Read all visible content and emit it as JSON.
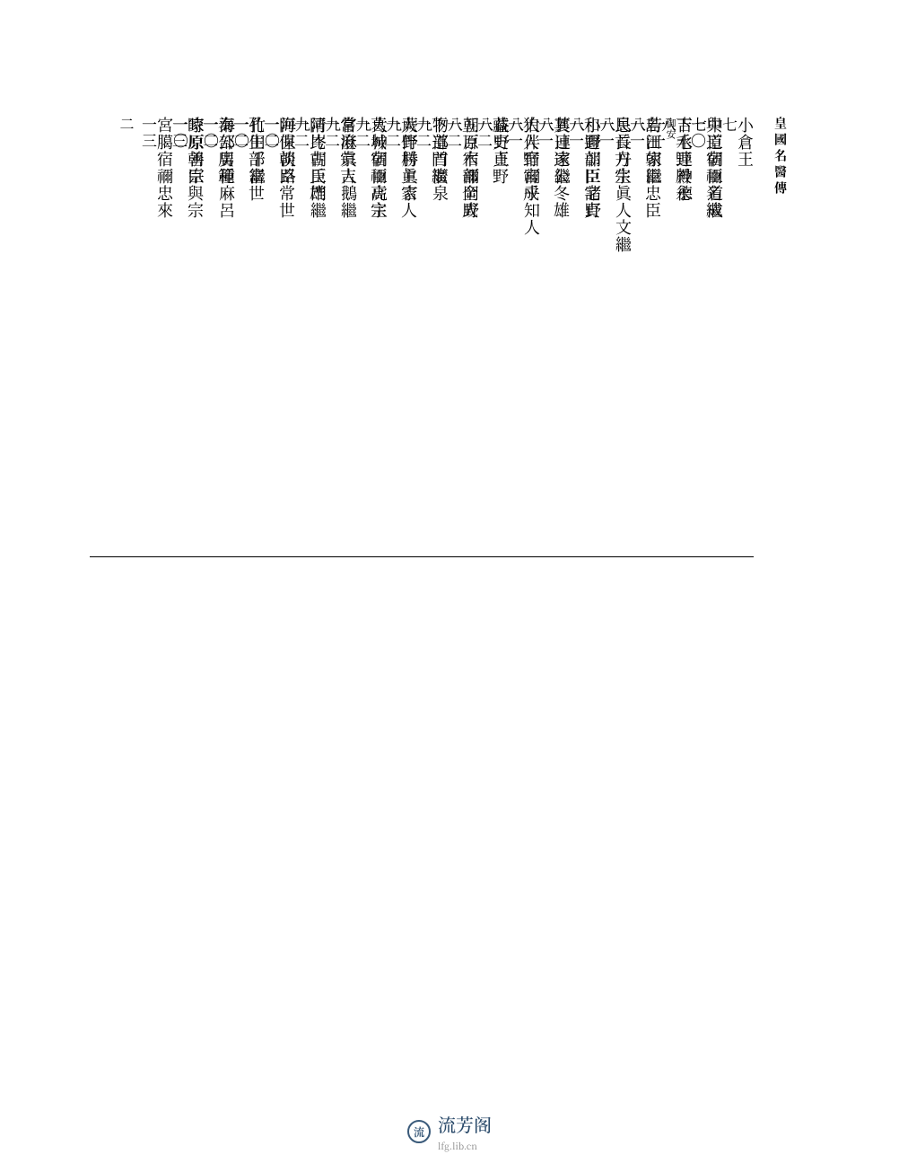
{
  "header": "皇國名醫傳",
  "page_number_right": "二",
  "columns": [
    {
      "top": {
        "name": "小倉王",
        "page": "七"
      },
      "bottom": {
        "name": "與道宿禰名繼",
        "page": "一〇"
      }
    },
    {
      "top": {
        "name": "中臣朝臣道成",
        "page": "七"
      },
      "bottom": {
        "name": "下毛野殿永",
        "sub": "御安",
        "page": "一一"
      }
    },
    {
      "top": {
        "name": "吉水連神德",
        "page": "八"
      },
      "bottom": {
        "name": "島田朝臣忠臣",
        "page": "一一"
      }
    },
    {
      "top": {
        "name": "若江家繼",
        "page": "八"
      },
      "bottom": {
        "name": "民首方宗",
        "page": "一一"
      }
    },
    {
      "top": {
        "name": "息長丹生眞人文繼",
        "page": "八"
      },
      "bottom": {
        "name": "和邇部臣宅貞",
        "page": "一一"
      }
    },
    {
      "top": {
        "name": "小野朝臣諸野",
        "page": "八"
      },
      "bottom": {
        "name": "其日達公冬雄",
        "page": "一一"
      }
    },
    {
      "top": {
        "name": "蘘連家繼",
        "page": "八"
      },
      "bottom": {
        "name": "狛人野宮成",
        "page": "一一"
      }
    },
    {
      "top": {
        "name": "大伴宿禰乎知人",
        "page": "八"
      },
      "bottom": {
        "name": "藏史貞野",
        "page": "一二"
      }
    },
    {
      "top": {
        "name": "益野王",
        "page": "八"
      },
      "bottom": {
        "name": "五百木部全成",
        "page": "一二"
      }
    },
    {
      "top": {
        "name": "朝原宿禰岡野",
        "page": "八"
      },
      "bottom": {
        "name": "下道門繼",
        "page": "一二"
      }
    },
    {
      "top": {
        "name": "物部首廣泉",
        "page": "九"
      },
      "bottom": {
        "name": "大伴村主家人",
        "page": "一二"
      }
    },
    {
      "top": {
        "name": "蕨野勝眞吉",
        "page": "九"
      },
      "bottom": {
        "name": "葛城宿禰高宗",
        "page": "一二"
      }
    },
    {
      "top": {
        "name": "大神朝臣虎主",
        "page": "九"
      },
      "bottom": {
        "name": "常澄宗吉",
        "page": "一二"
      }
    },
    {
      "top": {
        "name": "嘗麻眞人鵝繼",
        "page": "九"
      },
      "bottom": {
        "name": "阿比古氏雄",
        "page": "一二"
      }
    },
    {
      "top": {
        "name": "清岑朝臣門繼",
        "page": "九"
      },
      "bottom": {
        "name": "阿保朝臣常世",
        "page": "一二"
      }
    },
    {
      "top": {
        "name": "海直淡路",
        "page": "一〇"
      },
      "bottom": {
        "name": "孔生部富世",
        "page": "一二"
      }
    },
    {
      "top": {
        "name": "竹田千繼",
        "page": "一〇"
      },
      "bottom": {
        "name": "秦公廣範",
        "page": "一二"
      }
    },
    {
      "top": {
        "name": "海部男種麻呂",
        "page": "一〇"
      },
      "bottom": {
        "name": "時原朝臣與宗",
        "page": "一三"
      }
    },
    {
      "top": {
        "name": "家原善宗",
        "page": "一〇"
      },
      "bottom": {
        "name": "宮臈宿禰忠來",
        "page": "一三"
      }
    }
  ],
  "footer": {
    "logo_char": "流",
    "main": "流芳阁",
    "sub": "lfg.lib.cn"
  },
  "colors": {
    "text": "#000000",
    "bg": "#ffffff",
    "footer_main": "#2a4a6a",
    "footer_sub": "#888888",
    "logo_border": "#3a5a7a"
  },
  "fonts": {
    "body_size": 18,
    "header_size": 14,
    "page_num_size": 17
  }
}
